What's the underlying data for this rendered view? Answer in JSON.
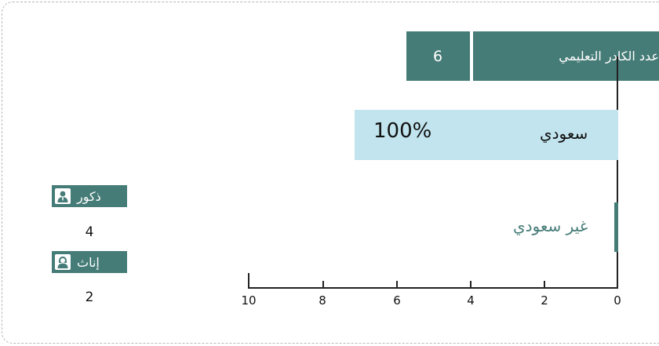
{
  "header": {
    "label": "عدد الكادر التعليمي",
    "value": "6"
  },
  "chart_data": {
    "type": "bar",
    "orientation": "horizontal",
    "categories": [
      "سعودي",
      "غير سعودي"
    ],
    "series": [
      {
        "values": [
          100,
          0
        ],
        "value_labels": [
          "100%",
          ""
        ]
      }
    ],
    "xaxis": {
      "ticks": [
        "10",
        "8",
        "6",
        "4",
        "2",
        "0"
      ],
      "reversed": true
    },
    "colors": {
      "saudi": "#c1e4ee",
      "non_saudi": "#467c77"
    }
  },
  "gender": {
    "male": {
      "label": "ذكور",
      "count": "4",
      "icon": "male-user-icon"
    },
    "female": {
      "label": "إناث",
      "count": "2",
      "icon": "female-user-icon"
    }
  },
  "colors": {
    "accent": "#467c77",
    "light_bar": "#c1e4ee"
  }
}
